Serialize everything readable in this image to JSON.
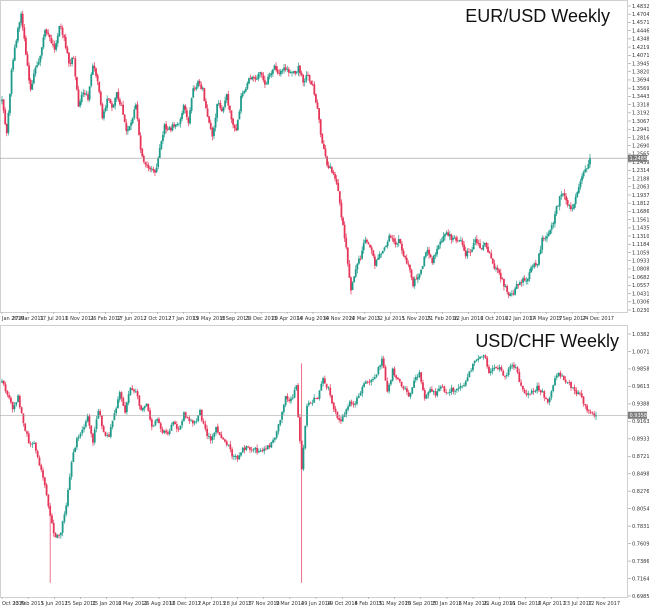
{
  "chart_data": [
    {
      "type": "candlestick",
      "title": "EUR/USD Weekly",
      "current_price": "1.24850",
      "y_tick_labels": [
        "1.48325",
        "1.47040",
        "1.45715",
        "1.44465",
        "1.43480",
        "1.42190",
        "1.40710",
        "1.39455",
        "1.38200",
        "1.36945",
        "1.35690",
        "1.34435",
        "1.33180",
        "1.31925",
        "1.30670",
        "1.29415",
        "1.28160",
        "1.26905",
        "1.25650",
        "1.24395",
        "1.23140",
        "1.21885",
        "1.20630",
        "1.19375",
        "1.18120",
        "1.16865",
        "1.15610",
        "1.14355",
        "1.13100",
        "1.11845",
        "1.10590",
        "1.09335",
        "1.08080",
        "1.06825",
        "1.05570",
        "1.04315",
        "1.03060",
        "1.02305"
      ],
      "x_tick_labels": [
        "Jan 2010",
        "27 Mar 2011",
        "17 Jul 2011",
        "6 Nov 2011",
        "26 Feb 2012",
        "17 Jun 2012",
        "7 Oct 2012",
        "27 Jan 2013",
        "19 May 2013",
        "8 Sep 2013",
        "29 Dec 2013",
        "20 Apr 2014",
        "10 Aug 2014",
        "30 Nov 2014",
        "22 Mar 2015",
        "12 Jul 2015",
        "1 Nov 2015",
        "21 Feb 2016",
        "12 Jun 2016",
        "2 Oct 2016",
        "22 Jan 2017",
        "14 May 2017",
        "3 Sep 2017",
        "24 Dec 2017"
      ],
      "ylim": [
        1.023,
        1.4838
      ],
      "close_series": [
        1.336,
        1.285,
        1.38,
        1.43,
        1.47,
        1.405,
        1.352,
        1.385,
        1.402,
        1.444,
        1.429,
        1.41,
        1.451,
        1.432,
        1.392,
        1.402,
        1.325,
        1.351,
        1.338,
        1.389,
        1.368,
        1.306,
        1.341,
        1.325,
        1.346,
        1.327,
        1.288,
        1.301,
        1.328,
        1.261,
        1.238,
        1.234,
        1.225,
        1.262,
        1.297,
        1.292,
        1.3,
        1.302,
        1.326,
        1.305,
        1.352,
        1.363,
        1.352,
        1.312,
        1.278,
        1.331,
        1.323,
        1.342,
        1.308,
        1.288,
        1.34,
        1.353,
        1.372,
        1.367,
        1.38,
        1.358,
        1.374,
        1.386,
        1.373,
        1.389,
        1.379,
        1.377,
        1.385,
        1.367,
        1.374,
        1.358,
        1.321,
        1.271,
        1.237,
        1.229,
        1.212,
        1.161,
        1.114,
        1.049,
        1.084,
        1.099,
        1.127,
        1.117,
        1.087,
        1.106,
        1.11,
        1.133,
        1.119,
        1.124,
        1.101,
        1.086,
        1.058,
        1.071,
        1.087,
        1.112,
        1.091,
        1.114,
        1.125,
        1.137,
        1.127,
        1.124,
        1.128,
        1.102,
        1.106,
        1.124,
        1.11,
        1.116,
        1.101,
        1.083,
        1.071,
        1.056,
        1.043,
        1.044,
        1.06,
        1.064,
        1.066,
        1.087,
        1.091,
        1.124,
        1.128,
        1.145,
        1.172,
        1.196,
        1.184,
        1.169,
        1.188,
        1.21,
        1.231,
        1.249
      ]
    },
    {
      "type": "candlestick",
      "title": "USD/CHF Weekly",
      "current_price": "0.93580",
      "y_tick_labels": [
        "1.03825",
        "1.00710",
        "0.98585",
        "0.96135",
        "0.93880",
        "0.91635",
        "0.89335",
        "0.87210",
        "0.84985",
        "0.82765",
        "0.80540",
        "0.78315",
        "0.76090",
        "0.73865",
        "0.71640",
        "0.69850"
      ],
      "x_tick_labels": [
        "Oct 2010",
        "13 Feb 2011",
        "5 Jun 2011",
        "25 Sep 2011",
        "15 Jan 2012",
        "6 May 2012",
        "26 Aug 2012",
        "16 Dec 2012",
        "7 Apr 2013",
        "28 Jul 2013",
        "17 Nov 2013",
        "9 Mar 2014",
        "29 Jun 2014",
        "19 Oct 2014",
        "8 Feb 2015",
        "31 May 2015",
        "20 Sep 2015",
        "10 Jan 2016",
        "1 May 2016",
        "21 Aug 2016",
        "11 Dec 2016",
        "2 Apr 2017",
        "23 Jul 2017",
        "12 Nov 2017"
      ],
      "ylim": [
        0.6985,
        1.0483
      ],
      "close_series": [
        0.98,
        0.962,
        0.946,
        0.961,
        0.926,
        0.9,
        0.898,
        0.871,
        0.84,
        0.8,
        0.772,
        0.781,
        0.813,
        0.876,
        0.904,
        0.915,
        0.936,
        0.901,
        0.942,
        0.914,
        0.906,
        0.939,
        0.965,
        0.94,
        0.975,
        0.967,
        0.942,
        0.954,
        0.92,
        0.93,
        0.914,
        0.911,
        0.929,
        0.915,
        0.937,
        0.927,
        0.926,
        0.94,
        0.915,
        0.902,
        0.918,
        0.904,
        0.899,
        0.883,
        0.88,
        0.893,
        0.891,
        0.892,
        0.885,
        0.889,
        0.896,
        0.905,
        0.93,
        0.96,
        0.955,
        0.973,
        0.864,
        0.947,
        0.955,
        0.959,
        0.986,
        0.97,
        0.947,
        0.928,
        0.935,
        0.953,
        0.952,
        0.967,
        0.981,
        0.983,
        0.99,
        1.012,
        0.967,
        0.995,
        0.983,
        0.973,
        0.96,
        0.982,
        0.991,
        0.957,
        0.969,
        0.963,
        0.977,
        0.964,
        0.97,
        0.971,
        0.973,
        0.988,
        1.004,
        1.009,
        1.018,
        0.995,
        1.002,
        0.999,
        0.985,
        1.001,
        0.998,
        0.976,
        0.961,
        0.967,
        0.972,
        0.967,
        0.951,
        0.979,
        0.992,
        0.983,
        0.977,
        0.967,
        0.966,
        0.946,
        0.936,
        0.9358
      ]
    }
  ],
  "colors": {
    "bull": "#1e9b8a",
    "bear": "#e53559",
    "price_line": "#9a9a9a",
    "price_box": "#7a7a7a"
  }
}
